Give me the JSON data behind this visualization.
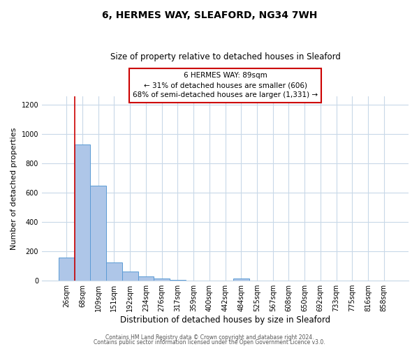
{
  "title": "6, HERMES WAY, SLEAFORD, NG34 7WH",
  "subtitle": "Size of property relative to detached houses in Sleaford",
  "xlabel": "Distribution of detached houses by size in Sleaford",
  "ylabel": "Number of detached properties",
  "bin_labels": [
    "26sqm",
    "68sqm",
    "109sqm",
    "151sqm",
    "192sqm",
    "234sqm",
    "276sqm",
    "317sqm",
    "359sqm",
    "400sqm",
    "442sqm",
    "484sqm",
    "525sqm",
    "567sqm",
    "608sqm",
    "650sqm",
    "692sqm",
    "733sqm",
    "775sqm",
    "816sqm",
    "858sqm"
  ],
  "bar_values": [
    160,
    930,
    650,
    125,
    60,
    30,
    15,
    5,
    0,
    0,
    0,
    15,
    0,
    0,
    0,
    0,
    0,
    0,
    0,
    0,
    0
  ],
  "bar_color": "#aec6e8",
  "bar_edgecolor": "#5b9bd5",
  "marker_label": "6 HERMES WAY: 89sqm",
  "annotation_line1": "← 31% of detached houses are smaller (606)",
  "annotation_line2": "68% of semi-detached houses are larger (1,331) →",
  "annotation_box_color": "#ffffff",
  "annotation_box_edgecolor": "#cc0000",
  "vline_color": "#cc0000",
  "vline_x": 0.5,
  "ylim": [
    0,
    1260
  ],
  "yticks": [
    0,
    200,
    400,
    600,
    800,
    1000,
    1200
  ],
  "footer1": "Contains HM Land Registry data © Crown copyright and database right 2024.",
  "footer2": "Contains public sector information licensed under the Open Government Licence v3.0.",
  "background_color": "#ffffff",
  "grid_color": "#c8d8e8",
  "title_fontsize": 10,
  "subtitle_fontsize": 8.5,
  "ylabel_fontsize": 8,
  "xlabel_fontsize": 8.5,
  "tick_fontsize": 7,
  "footer_fontsize": 5.5,
  "annot_fontsize": 7.5
}
